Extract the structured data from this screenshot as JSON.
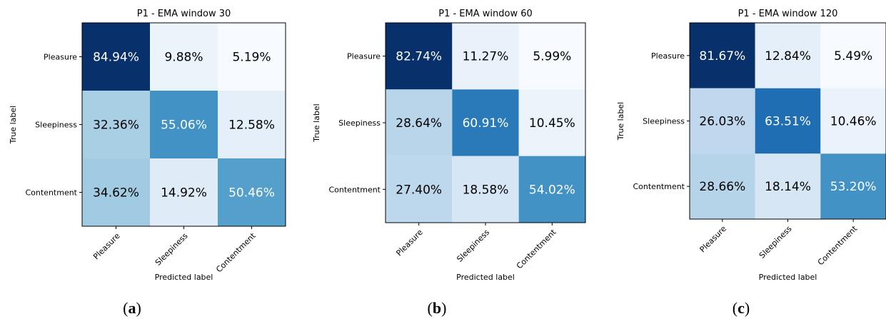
{
  "chart_data": [
    {
      "type": "heatmap",
      "title": "P1 - EMA window 30",
      "xlabel": "Predicted label",
      "ylabel": "True label",
      "x_categories": [
        "Pleasure",
        "Sleepiness",
        "Contentment"
      ],
      "y_categories": [
        "Pleasure",
        "Sleepiness",
        "Contentment"
      ],
      "values": [
        [
          84.94,
          9.88,
          5.19
        ],
        [
          32.36,
          55.06,
          12.58
        ],
        [
          34.62,
          14.92,
          50.46
        ]
      ],
      "labels": [
        [
          "84.94%",
          "9.88%",
          "5.19%"
        ],
        [
          "32.36%",
          "55.06%",
          "12.58%"
        ],
        [
          "34.62%",
          "14.92%",
          "50.46%"
        ]
      ],
      "colormap": "Blues",
      "caption": "(a)"
    },
    {
      "type": "heatmap",
      "title": "P1 - EMA window 60",
      "xlabel": "Predicted label",
      "ylabel": "True label",
      "x_categories": [
        "Pleasure",
        "Sleepiness",
        "Contentment"
      ],
      "y_categories": [
        "Pleasure",
        "Sleepiness",
        "Contentment"
      ],
      "values": [
        [
          82.74,
          11.27,
          5.99
        ],
        [
          28.64,
          60.91,
          10.45
        ],
        [
          27.4,
          18.58,
          54.02
        ]
      ],
      "labels": [
        [
          "82.74%",
          "11.27%",
          "5.99%"
        ],
        [
          "28.64%",
          "60.91%",
          "10.45%"
        ],
        [
          "27.40%",
          "18.58%",
          "54.02%"
        ]
      ],
      "colormap": "Blues",
      "caption": "(b)"
    },
    {
      "type": "heatmap",
      "title": "P1 - EMA window 120",
      "xlabel": "Predicted label",
      "ylabel": "True label",
      "x_categories": [
        "Pleasure",
        "Sleepiness",
        "Contentment"
      ],
      "y_categories": [
        "Pleasure",
        "Sleepiness",
        "Contentment"
      ],
      "values": [
        [
          81.67,
          12.84,
          5.49
        ],
        [
          26.03,
          63.51,
          10.46
        ],
        [
          28.66,
          18.14,
          53.2
        ]
      ],
      "labels": [
        [
          "81.67%",
          "12.84%",
          "5.49%"
        ],
        [
          "26.03%",
          "63.51%",
          "10.46%"
        ],
        [
          "28.66%",
          "18.14%",
          "53.20%"
        ]
      ],
      "colormap": "Blues",
      "caption": "(c)"
    }
  ]
}
